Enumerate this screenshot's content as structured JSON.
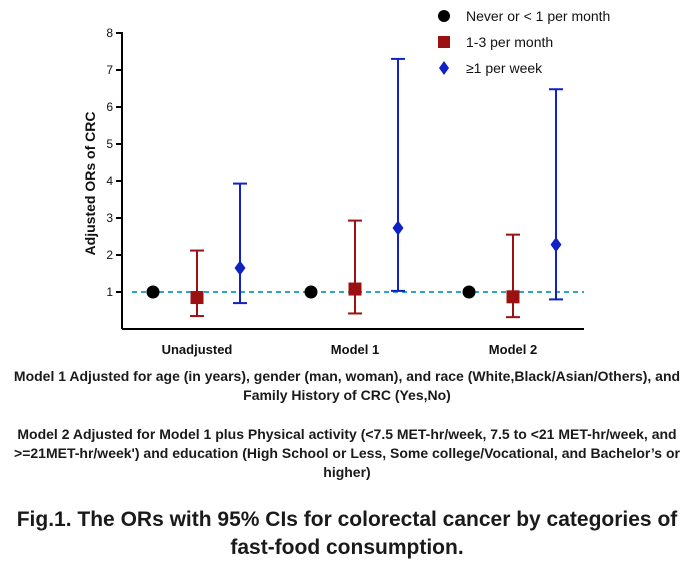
{
  "chart_data": {
    "type": "scatter",
    "ylabel": "Adjusted ORs of CRC",
    "ylim": [
      0,
      8
    ],
    "yticks": [
      1,
      2,
      3,
      4,
      5,
      6,
      7,
      8
    ],
    "categories": [
      "Unadjusted",
      "Model 1",
      "Model 2"
    ],
    "reference_line": 1,
    "legend_position": "top-right",
    "series": [
      {
        "name": "Never or < 1 per month",
        "marker": "circle",
        "color": "#000000",
        "values": [
          1,
          1,
          1
        ],
        "lower": [
          null,
          null,
          null
        ],
        "upper": [
          null,
          null,
          null
        ]
      },
      {
        "name": "1-3 per month",
        "marker": "square",
        "color": "#9b1111",
        "values": [
          0.85,
          1.08,
          0.87
        ],
        "lower": [
          0.35,
          0.42,
          0.32
        ],
        "upper": [
          2.12,
          2.93,
          2.55
        ]
      },
      {
        "name": "≥1 per week",
        "marker": "diamond",
        "color": "#1022c4",
        "values": [
          1.65,
          2.73,
          2.28
        ],
        "lower": [
          0.7,
          1.03,
          0.8
        ],
        "upper": [
          3.93,
          7.3,
          6.48
        ]
      }
    ],
    "reference_color": "#2aa7c9"
  },
  "notes": {
    "model1": "Model 1 Adjusted for age  (in years), gender (man, woman), and race (White,Black/Asian/Others), and Family History of CRC (Yes,No)",
    "model2": "Model 2  Adjusted for Model 1 plus Physical activity (<7.5 MET-hr/week, 7.5 to <21 MET-hr/week, and >=21MET-hr/week') and education (High School or Less, Some college/Vocational, and Bachelor’s or higher)"
  },
  "caption": "Fig.1. The ORs with 95% CIs for colorectal cancer by categories of fast-food consumption."
}
